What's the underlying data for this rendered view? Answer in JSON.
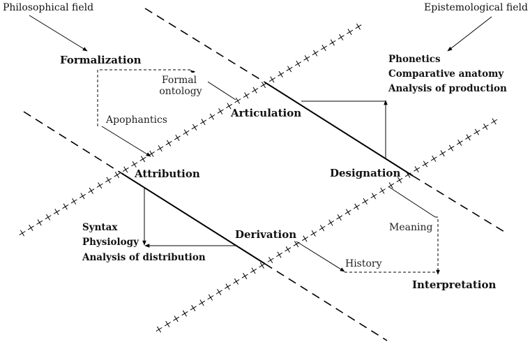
{
  "fields": {
    "philosophical": "Philosophical field",
    "epistemological": "Epistemological field"
  },
  "nodes": {
    "formalization": "Formalization",
    "articulation": "Articulation",
    "attribution": "Attribution",
    "designation": "Designation",
    "derivation": "Derivation",
    "interpretation": "Interpretation"
  },
  "relations": {
    "formal_ontology": [
      "Formal",
      "ontology"
    ],
    "apophantics": "Apophantics",
    "meaning": "Meaning",
    "history": "History"
  },
  "sciences": {
    "articulation_group": [
      "Phonetics",
      "Comparative anatomy",
      "Analysis of production"
    ],
    "attribution_group": [
      "Syntax",
      "Physiology",
      "Analysis of distribution"
    ]
  }
}
